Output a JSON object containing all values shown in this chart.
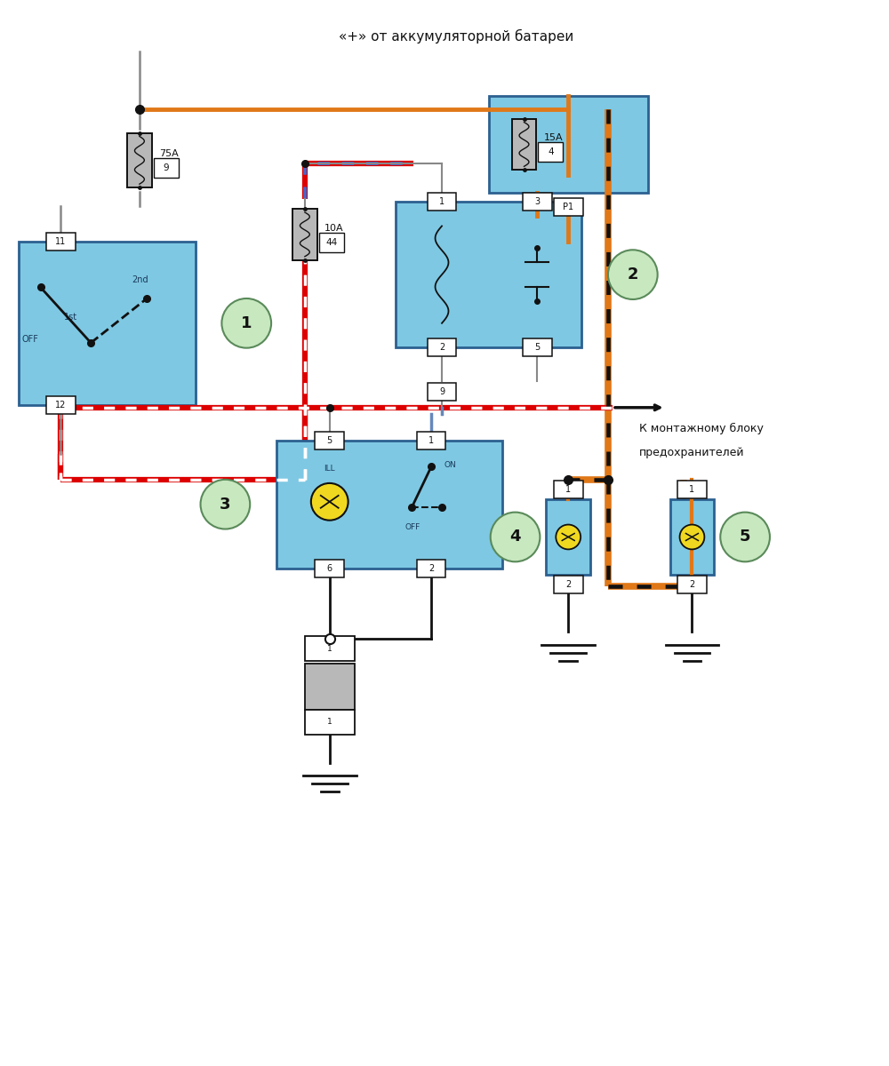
{
  "title": "«+» от аккумуляторной батареи",
  "side_text_1": "К монтажному блоку",
  "side_text_2": "предохранителей",
  "bg_color": "#ffffff",
  "blue_box_color": "#7ec8e3",
  "blue_box_edge": "#2c6090",
  "gray_fuse_color": "#b8b8b8",
  "orange_wire": "#e07818",
  "red_color": "#dd0000",
  "blue_color": "#4466cc",
  "gray_wire": "#888888",
  "black_color": "#111111",
  "dk_blue": "#1a3a5a",
  "yellow_bulb": "#f0d820",
  "green_circle": "#c8e8c0",
  "green_circle_edge": "#5a8a5a"
}
